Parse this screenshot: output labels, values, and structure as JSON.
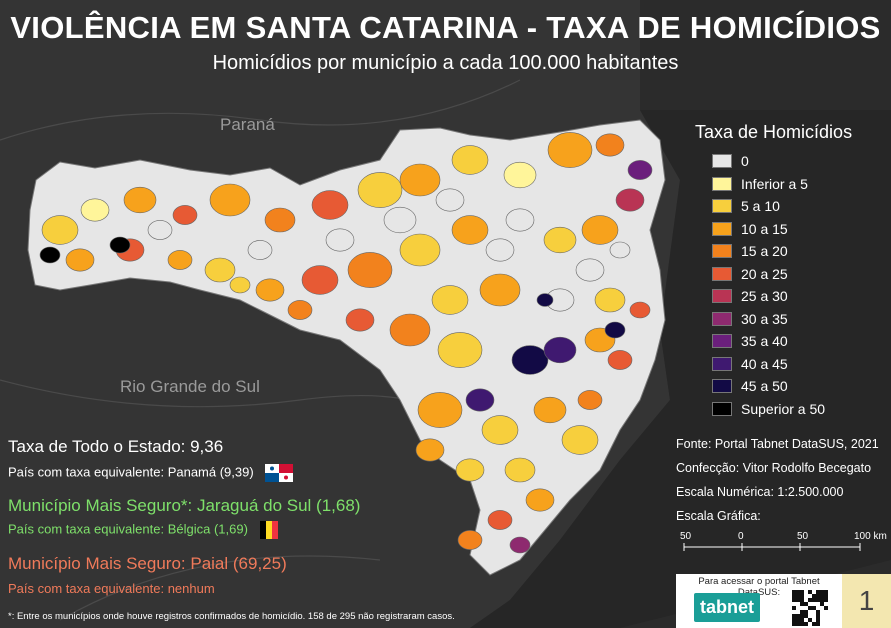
{
  "header": {
    "title": "VIOLÊNCIA EM SANTA CATARINA - TAXA DE HOMICÍDIOS",
    "subtitle": "Homicídios por município a cada 100.000 habitantes"
  },
  "map_labels": {
    "parana": "Paraná",
    "rs": "Rio Grande do Sul"
  },
  "legend": {
    "title": "Taxa de Homicídios",
    "items": [
      {
        "label": "0",
        "color": "#e6e6e6"
      },
      {
        "label": "Inferior a 5",
        "color": "#fff59a"
      },
      {
        "label": "5 a 10",
        "color": "#f7cf3d"
      },
      {
        "label": "10 a 15",
        "color": "#f7a21c"
      },
      {
        "label": "15 a 20",
        "color": "#f2821d"
      },
      {
        "label": "20 a 25",
        "color": "#e75a34"
      },
      {
        "label": "25 a 30",
        "color": "#b93454"
      },
      {
        "label": "30 a 35",
        "color": "#8e2a6f"
      },
      {
        "label": "35 a 40",
        "color": "#6b1f7c"
      },
      {
        "label": "40 a 45",
        "color": "#3f1970"
      },
      {
        "label": "45 a 50",
        "color": "#120a45"
      },
      {
        "label": "Superior a 50",
        "color": "#000000"
      }
    ]
  },
  "stats": {
    "state": "Taxa de Todo o Estado: 9,36",
    "state_equiv": "País com taxa equivalente: Panamá (9,39)",
    "safest": "Município Mais Seguro*: Jaraguá do Sul (1,68)",
    "safest_equiv": "País com taxa equivalente: Bélgica (1,69)",
    "worst": "Município Mais Seguro: Paial (69,25)",
    "worst_equiv": "País com taxa equivalente: nenhum"
  },
  "credits": {
    "source": "Fonte: Portal Tabnet DataSUS, 2021",
    "author": "Confecção: Vitor Rodolfo Becegato",
    "scale_num": "Escala Numérica: 1:2.500.000",
    "scale_graph": "Escala Gráfica:",
    "scale_ticks": [
      "50",
      "0",
      "50",
      "100 km"
    ]
  },
  "qr": {
    "text": "Para acessar o portal Tabnet DataSUS:",
    "logo": "tabnet"
  },
  "page_number": "1",
  "footnote": "*: Entre os municípios onde houve registros confirmados de homicídio. 158 de 295 não registraram casos.",
  "colors": {
    "background": "#2b2b2b",
    "land": "#3a3a3a",
    "border": "#555555",
    "green_text": "#7ee06a",
    "red_text": "#f07a5a"
  }
}
